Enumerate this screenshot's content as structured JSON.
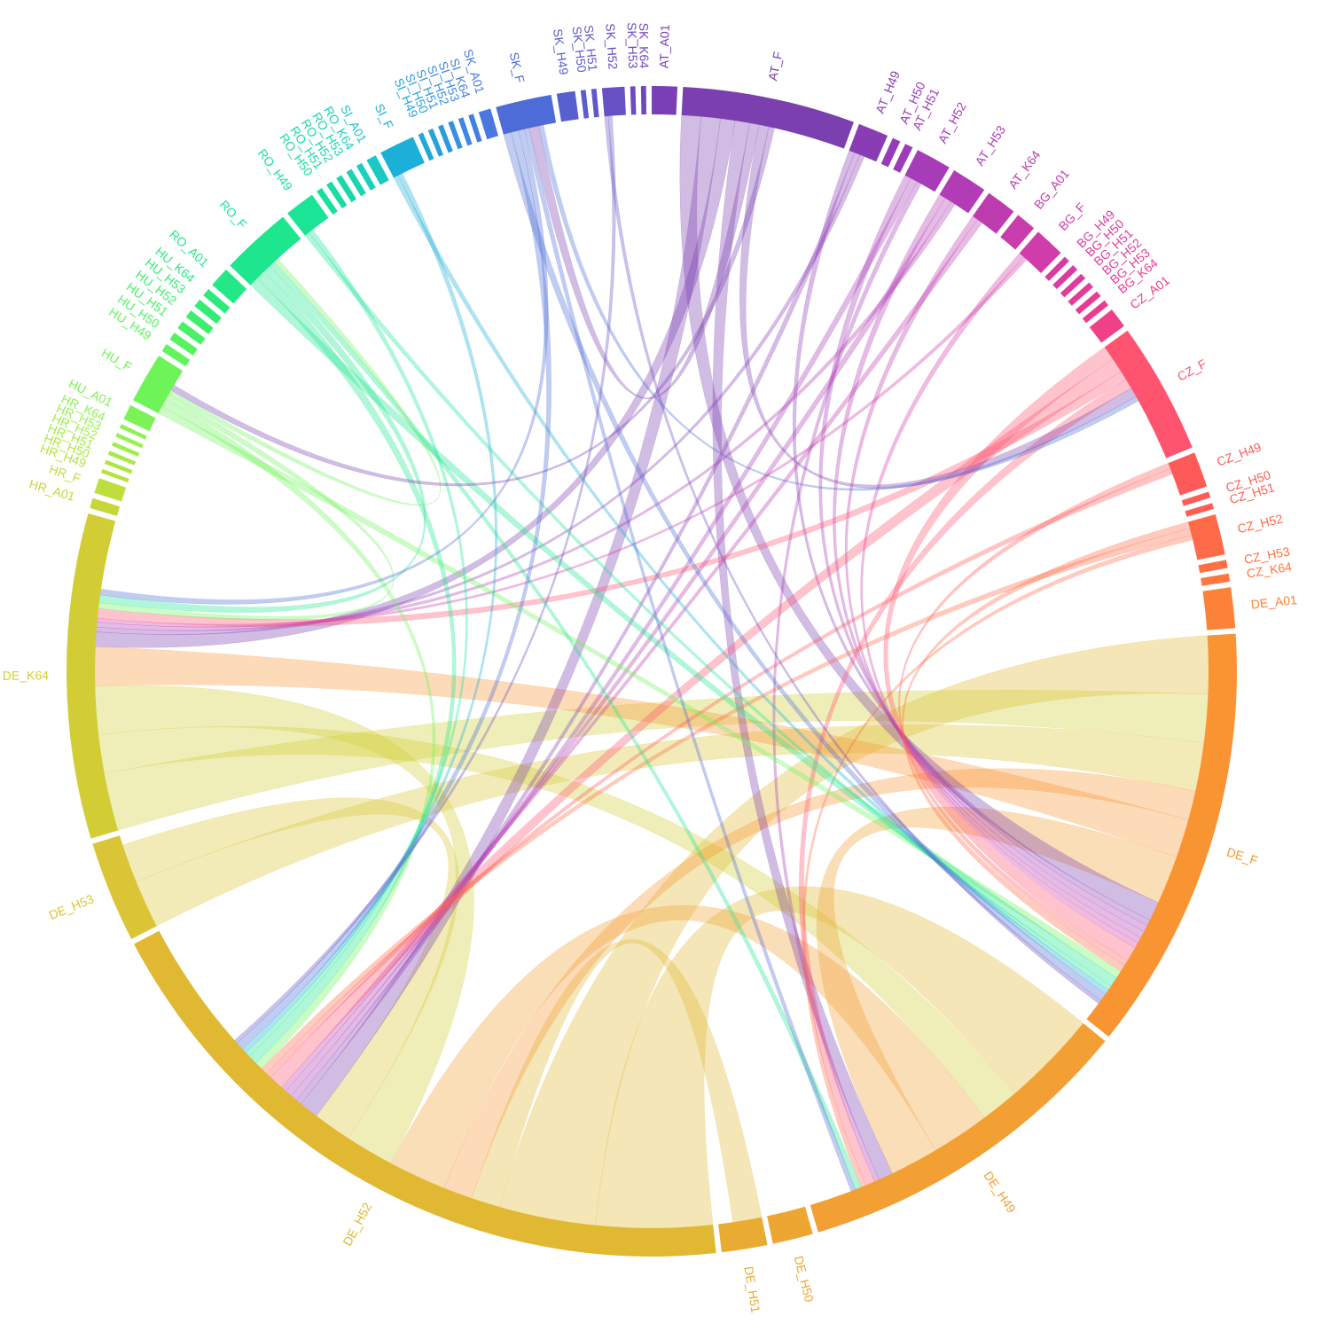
{
  "chart_data": {
    "type": "chord",
    "groups": [
      {
        "name": "AT_A01",
        "value": 2.5,
        "color": "#7a3fb5"
      },
      {
        "name": "AT_F",
        "value": 17,
        "color": "#7b3fb0"
      },
      {
        "name": "AT_H49",
        "value": 3,
        "color": "#8a3cb5"
      },
      {
        "name": "AT_H50",
        "value": 0.8,
        "color": "#963cb8"
      },
      {
        "name": "AT_H51",
        "value": 0.8,
        "color": "#9c3cb8"
      },
      {
        "name": "AT_H52",
        "value": 3.5,
        "color": "#a63cb8"
      },
      {
        "name": "AT_H53",
        "value": 3.5,
        "color": "#b23cb5"
      },
      {
        "name": "AT_K64",
        "value": 3,
        "color": "#bc3cb0"
      },
      {
        "name": "BG_A01",
        "value": 2,
        "color": "#c83cac"
      },
      {
        "name": "BG_F",
        "value": 3,
        "color": "#d03ca8"
      },
      {
        "name": "BG_H49",
        "value": 0.6,
        "color": "#d83ca4"
      },
      {
        "name": "BG_H50",
        "value": 0.6,
        "color": "#dc3ca0"
      },
      {
        "name": "BG_H51",
        "value": 0.6,
        "color": "#e03c9c"
      },
      {
        "name": "BG_H52",
        "value": 0.6,
        "color": "#e43c98"
      },
      {
        "name": "BG_H53",
        "value": 0.6,
        "color": "#e83c94"
      },
      {
        "name": "BG_K64",
        "value": 0.6,
        "color": "#ec3c90"
      },
      {
        "name": "CZ_A01",
        "value": 2,
        "color": "#f04088"
      },
      {
        "name": "CZ_F",
        "value": 13,
        "color": "#ff5470"
      },
      {
        "name": "CZ_H49",
        "value": 3.5,
        "color": "#ff5a5a"
      },
      {
        "name": "CZ_H50",
        "value": 0.6,
        "color": "#ff5c55"
      },
      {
        "name": "CZ_H51",
        "value": 0.6,
        "color": "#ff5e52"
      },
      {
        "name": "CZ_H52",
        "value": 4,
        "color": "#ff6a48"
      },
      {
        "name": "CZ_H53",
        "value": 0.8,
        "color": "#ff7044"
      },
      {
        "name": "CZ_K64",
        "value": 0.8,
        "color": "#ff7640"
      },
      {
        "name": "DE_A01",
        "value": 4,
        "color": "#fb8238"
      },
      {
        "name": "DE_F",
        "value": 42,
        "color": "#f99433"
      },
      {
        "name": "DE_H49",
        "value": 34,
        "color": "#f2a033"
      },
      {
        "name": "DE_H50",
        "value": 4,
        "color": "#eea632"
      },
      {
        "name": "DE_H51",
        "value": 4.5,
        "color": "#e9ac32"
      },
      {
        "name": "DE_H52",
        "value": 68,
        "color": "#e0b832"
      },
      {
        "name": "DE_H53",
        "value": 10,
        "color": "#d9c535"
      },
      {
        "name": "DE_K64",
        "value": 32,
        "color": "#d2cd35"
      },
      {
        "name": "HR_A01",
        "value": 1,
        "color": "#c8d638"
      },
      {
        "name": "HR_F",
        "value": 1.5,
        "color": "#bede3c"
      },
      {
        "name": "HR_H49",
        "value": 0.4,
        "color": "#b6e240"
      },
      {
        "name": "HR_H50",
        "value": 0.4,
        "color": "#aee644"
      },
      {
        "name": "HR_H51",
        "value": 0.4,
        "color": "#a6ea48"
      },
      {
        "name": "HR_H52",
        "value": 0.4,
        "color": "#9eee4c"
      },
      {
        "name": "HR_H53",
        "value": 0.4,
        "color": "#96f050"
      },
      {
        "name": "HR_K64",
        "value": 0.4,
        "color": "#8ef254"
      },
      {
        "name": "HU_A01",
        "value": 1.5,
        "color": "#7cf256"
      },
      {
        "name": "HU_F",
        "value": 5,
        "color": "#6ef458"
      },
      {
        "name": "HU_H49",
        "value": 0.8,
        "color": "#62f45c"
      },
      {
        "name": "HU_H50",
        "value": 0.8,
        "color": "#56f260"
      },
      {
        "name": "HU_H51",
        "value": 0.8,
        "color": "#4af066"
      },
      {
        "name": "HU_H52",
        "value": 0.8,
        "color": "#3eee6c"
      },
      {
        "name": "HU_H53",
        "value": 0.8,
        "color": "#34ec74"
      },
      {
        "name": "HU_K64",
        "value": 0.8,
        "color": "#2cea7c"
      },
      {
        "name": "RO_A01",
        "value": 2,
        "color": "#24e888"
      },
      {
        "name": "RO_F",
        "value": 7,
        "color": "#1ee68e"
      },
      {
        "name": "RO_H49",
        "value": 3,
        "color": "#1ae496"
      },
      {
        "name": "RO_H50",
        "value": 0.6,
        "color": "#1ae09c"
      },
      {
        "name": "RO_H51",
        "value": 0.6,
        "color": "#1adca4"
      },
      {
        "name": "RO_H52",
        "value": 0.6,
        "color": "#1ad8ac"
      },
      {
        "name": "RO_H53",
        "value": 0.6,
        "color": "#1ad4b4"
      },
      {
        "name": "RO_K64",
        "value": 0.6,
        "color": "#1ad0bc"
      },
      {
        "name": "SI_A01",
        "value": 1,
        "color": "#1ac8c4"
      },
      {
        "name": "SI_F",
        "value": 3.5,
        "color": "#1cb0d8"
      },
      {
        "name": "SI_H49",
        "value": 0.5,
        "color": "#20a8da"
      },
      {
        "name": "SI_H50",
        "value": 0.5,
        "color": "#2aa0dc"
      },
      {
        "name": "SI_H51",
        "value": 0.5,
        "color": "#3298de"
      },
      {
        "name": "SI_H52",
        "value": 0.5,
        "color": "#3890e0"
      },
      {
        "name": "SI_H53",
        "value": 0.5,
        "color": "#3e88e0"
      },
      {
        "name": "SI_K64",
        "value": 0.5,
        "color": "#4280e0"
      },
      {
        "name": "SK_A01",
        "value": 1.2,
        "color": "#4a78e0"
      },
      {
        "name": "SK_F",
        "value": 5.5,
        "color": "#4e6cd8"
      },
      {
        "name": "SK_H49",
        "value": 1.8,
        "color": "#5860d0"
      },
      {
        "name": "SK_H50",
        "value": 0.5,
        "color": "#5c5ccc"
      },
      {
        "name": "SK_H51",
        "value": 0.5,
        "color": "#6058c8"
      },
      {
        "name": "SK_H52",
        "value": 2.2,
        "color": "#6650c4"
      },
      {
        "name": "SK_H53",
        "value": 0.5,
        "color": "#6c4cc0"
      },
      {
        "name": "SK_K64",
        "value": 0.5,
        "color": "#7046bc"
      }
    ],
    "chords": [
      {
        "source": 29,
        "target": 26,
        "values": [
          12,
          10
        ]
      },
      {
        "source": 29,
        "target": 25,
        "values": [
          10,
          6
        ]
      },
      {
        "source": 29,
        "target": 28,
        "values": [
          3,
          3
        ]
      },
      {
        "source": 31,
        "target": 25,
        "values": [
          6,
          5
        ]
      },
      {
        "source": 30,
        "target": 25,
        "values": [
          5,
          5
        ]
      },
      {
        "source": 31,
        "target": 26,
        "values": [
          4,
          4
        ]
      },
      {
        "source": 25,
        "target": 29,
        "values": [
          3,
          3
        ]
      },
      {
        "source": 26,
        "target": 29,
        "values": [
          6,
          6
        ]
      },
      {
        "source": 31,
        "target": 29,
        "values": [
          5,
          5
        ]
      },
      {
        "source": 30,
        "target": 29,
        "values": [
          4,
          4
        ]
      },
      {
        "source": 25,
        "target": 31,
        "values": [
          4,
          4
        ]
      },
      {
        "source": 26,
        "target": 25,
        "values": [
          5,
          5
        ]
      },
      {
        "source": 1,
        "target": 25,
        "values": [
          2,
          2
        ]
      },
      {
        "source": 1,
        "target": 29,
        "values": [
          2,
          2
        ]
      },
      {
        "source": 1,
        "target": 31,
        "values": [
          1.5,
          1.5
        ]
      },
      {
        "source": 1,
        "target": 26,
        "values": [
          1.5,
          1.5
        ]
      },
      {
        "source": 2,
        "target": 25,
        "values": [
          0.6,
          0.6
        ]
      },
      {
        "source": 2,
        "target": 29,
        "values": [
          0.6,
          0.6
        ]
      },
      {
        "source": 2,
        "target": 31,
        "values": [
          0.5,
          0.5
        ]
      },
      {
        "source": 5,
        "target": 25,
        "values": [
          0.7,
          0.7
        ]
      },
      {
        "source": 5,
        "target": 29,
        "values": [
          0.7,
          0.7
        ]
      },
      {
        "source": 5,
        "target": 26,
        "values": [
          0.5,
          0.5
        ]
      },
      {
        "source": 6,
        "target": 25,
        "values": [
          0.7,
          0.7
        ]
      },
      {
        "source": 6,
        "target": 29,
        "values": [
          0.7,
          0.7
        ]
      },
      {
        "source": 6,
        "target": 31,
        "values": [
          0.5,
          0.5
        ]
      },
      {
        "source": 7,
        "target": 25,
        "values": [
          0.6,
          0.6
        ]
      },
      {
        "source": 7,
        "target": 29,
        "values": [
          0.6,
          0.6
        ]
      },
      {
        "source": 9,
        "target": 25,
        "values": [
          0.6,
          0.6
        ]
      },
      {
        "source": 9,
        "target": 31,
        "values": [
          0.4,
          0.4
        ]
      },
      {
        "source": 17,
        "target": 25,
        "values": [
          1.5,
          1.5
        ]
      },
      {
        "source": 17,
        "target": 29,
        "values": [
          1.5,
          1.5
        ]
      },
      {
        "source": 17,
        "target": 31,
        "values": [
          1,
          1
        ]
      },
      {
        "source": 17,
        "target": 26,
        "values": [
          1,
          1
        ]
      },
      {
        "source": 18,
        "target": 25,
        "values": [
          0.6,
          0.6
        ]
      },
      {
        "source": 18,
        "target": 29,
        "values": [
          0.6,
          0.6
        ]
      },
      {
        "source": 21,
        "target": 25,
        "values": [
          0.7,
          0.7
        ]
      },
      {
        "source": 21,
        "target": 29,
        "values": [
          0.7,
          0.7
        ]
      },
      {
        "source": 21,
        "target": 26,
        "values": [
          0.5,
          0.5
        ]
      },
      {
        "source": 41,
        "target": 25,
        "values": [
          0.8,
          0.8
        ]
      },
      {
        "source": 41,
        "target": 29,
        "values": [
          0.8,
          0.8
        ]
      },
      {
        "source": 41,
        "target": 31,
        "values": [
          0.6,
          0.6
        ]
      },
      {
        "source": 49,
        "target": 25,
        "values": [
          1,
          1
        ]
      },
      {
        "source": 49,
        "target": 29,
        "values": [
          1,
          1
        ]
      },
      {
        "source": 49,
        "target": 31,
        "values": [
          0.8,
          0.8
        ]
      },
      {
        "source": 49,
        "target": 26,
        "values": [
          0.6,
          0.6
        ]
      },
      {
        "source": 50,
        "target": 25,
        "values": [
          0.5,
          0.5
        ]
      },
      {
        "source": 50,
        "target": 29,
        "values": [
          0.5,
          0.5
        ]
      },
      {
        "source": 57,
        "target": 25,
        "values": [
          0.5,
          0.5
        ]
      },
      {
        "source": 57,
        "target": 29,
        "values": [
          0.5,
          0.5
        ]
      },
      {
        "source": 65,
        "target": 25,
        "values": [
          0.8,
          0.8
        ]
      },
      {
        "source": 65,
        "target": 29,
        "values": [
          0.8,
          0.8
        ]
      },
      {
        "source": 65,
        "target": 31,
        "values": [
          0.6,
          0.6
        ]
      },
      {
        "source": 65,
        "target": 26,
        "values": [
          0.5,
          0.5
        ]
      },
      {
        "source": 69,
        "target": 25,
        "values": [
          0.4,
          0.4
        ]
      },
      {
        "source": 69,
        "target": 29,
        "values": [
          0.4,
          0.4
        ]
      },
      {
        "source": 1,
        "target": 65,
        "values": [
          1,
          1
        ]
      },
      {
        "source": 1,
        "target": 17,
        "values": [
          1,
          1
        ]
      },
      {
        "source": 41,
        "target": 49,
        "values": [
          0.5,
          0.5
        ]
      },
      {
        "source": 65,
        "target": 17,
        "values": [
          0.5,
          0.5
        ]
      },
      {
        "source": 1,
        "target": 41,
        "values": [
          0.6,
          0.6
        ]
      }
    ]
  }
}
